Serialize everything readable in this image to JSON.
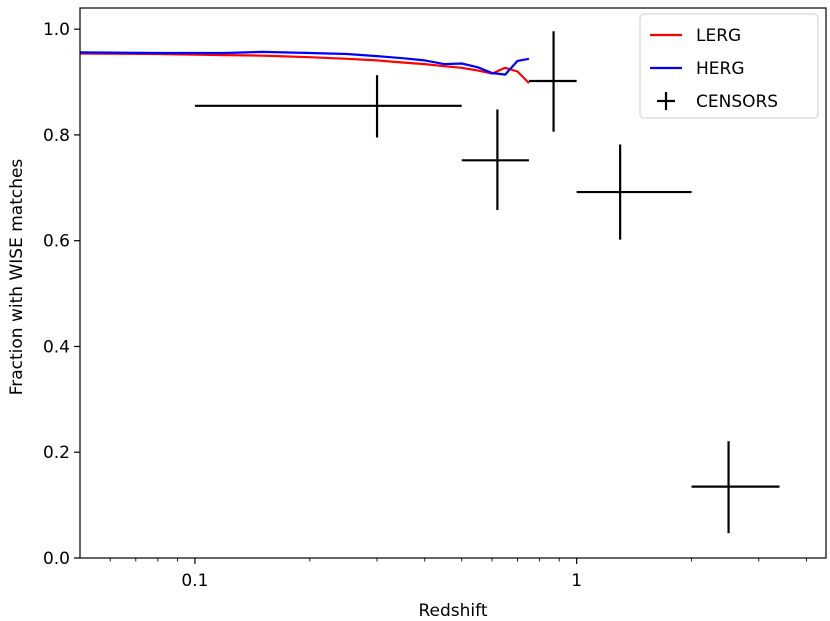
{
  "chart_data": {
    "type": "line",
    "title": "",
    "xlabel": "Redshift",
    "ylabel": "Fraction with WISE matches",
    "xscale": "log",
    "xlim": [
      0.05,
      4.5
    ],
    "ylim": [
      0.0,
      1.04
    ],
    "xticks": [
      {
        "value": 0.1,
        "label": "0.1"
      },
      {
        "value": 1,
        "label": "1"
      }
    ],
    "yticks": [
      {
        "value": 0.0,
        "label": "0.0"
      },
      {
        "value": 0.2,
        "label": "0.2"
      },
      {
        "value": 0.4,
        "label": "0.4"
      },
      {
        "value": 0.6,
        "label": "0.6"
      },
      {
        "value": 0.8,
        "label": "0.8"
      },
      {
        "value": 1.0,
        "label": "1.0"
      }
    ],
    "grid": false,
    "legend_position": "top-right",
    "series": [
      {
        "name": "LERG",
        "kind": "line",
        "color": "#ff0000",
        "x": [
          0.05,
          0.08,
          0.12,
          0.15,
          0.2,
          0.25,
          0.3,
          0.35,
          0.4,
          0.45,
          0.5,
          0.55,
          0.6,
          0.65,
          0.7,
          0.75
        ],
        "y": [
          0.954,
          0.953,
          0.951,
          0.95,
          0.947,
          0.944,
          0.941,
          0.937,
          0.934,
          0.93,
          0.927,
          0.922,
          0.916,
          0.927,
          0.92,
          0.898
        ]
      },
      {
        "name": "HERG",
        "kind": "line",
        "color": "#0000ff",
        "x": [
          0.05,
          0.08,
          0.12,
          0.15,
          0.2,
          0.25,
          0.3,
          0.35,
          0.4,
          0.45,
          0.5,
          0.55,
          0.6,
          0.65,
          0.7,
          0.75
        ],
        "y": [
          0.956,
          0.955,
          0.955,
          0.957,
          0.955,
          0.953,
          0.949,
          0.945,
          0.941,
          0.934,
          0.935,
          0.928,
          0.917,
          0.914,
          0.94,
          0.944
        ]
      },
      {
        "name": "CENSORS",
        "kind": "errorbar",
        "color": "#000000",
        "points": [
          {
            "x": 0.3,
            "y": 0.855,
            "xmin": 0.1,
            "xmax": 0.5,
            "ymin": 0.795,
            "ymax": 0.913
          },
          {
            "x": 0.62,
            "y": 0.752,
            "xmin": 0.5,
            "xmax": 0.75,
            "ymin": 0.658,
            "ymax": 0.848
          },
          {
            "x": 0.87,
            "y": 0.902,
            "xmin": 0.75,
            "xmax": 1.0,
            "ymin": 0.806,
            "ymax": 0.996
          },
          {
            "x": 1.3,
            "y": 0.692,
            "xmin": 1.0,
            "xmax": 2.0,
            "ymin": 0.602,
            "ymax": 0.782
          },
          {
            "x": 2.5,
            "y": 0.135,
            "xmin": 2.0,
            "xmax": 3.4,
            "ymin": 0.047,
            "ymax": 0.221
          }
        ]
      }
    ]
  }
}
